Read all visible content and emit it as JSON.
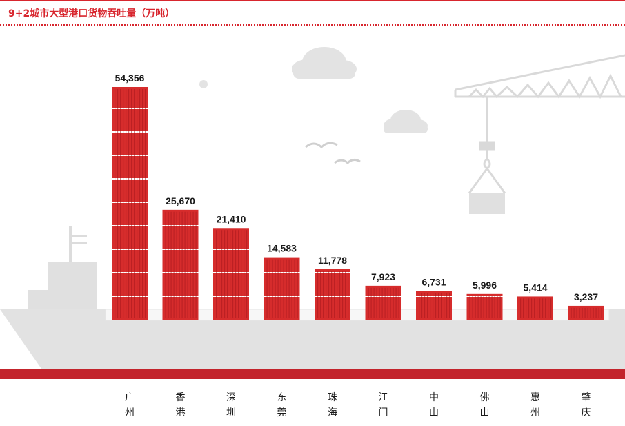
{
  "title": "9+2城市大型港口货物吞吐量（万吨）",
  "colors": {
    "accent": "#d8262e",
    "bar": "#d62c2c",
    "ship": "#dcdcdc"
  },
  "chart_data": {
    "type": "bar",
    "title": "9+2城市大型港口货物吞吐量（万吨）",
    "categories": [
      "广州",
      "香港",
      "深圳",
      "东莞",
      "珠海",
      "江门",
      "中山",
      "佛山",
      "惠州",
      "肇庆"
    ],
    "values": [
      54356,
      25670,
      21410,
      14583,
      11778,
      7923,
      6731,
      5996,
      5414,
      3237
    ],
    "value_labels": [
      "54,356",
      "25,670",
      "21,410",
      "14,583",
      "11,778",
      "7,923",
      "6,731",
      "5,996",
      "5,414",
      "3,237"
    ],
    "xlabel": "",
    "ylabel": "",
    "ylim": [
      0,
      54356
    ],
    "grid": false,
    "legend": "none"
  }
}
